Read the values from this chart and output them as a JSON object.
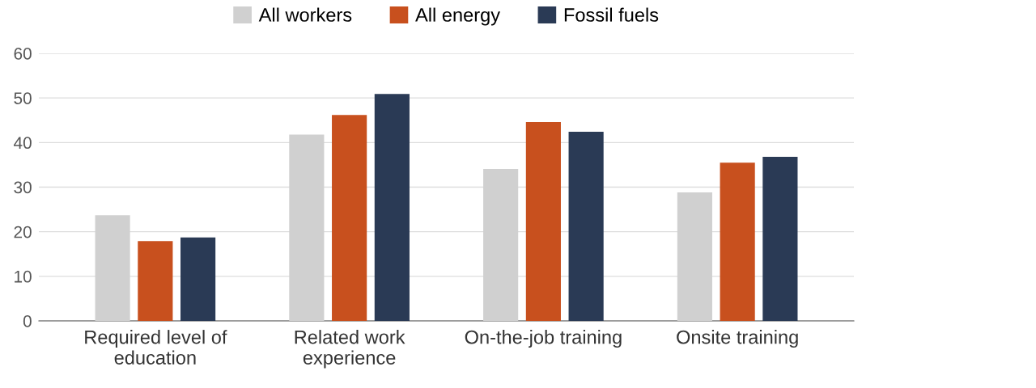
{
  "chart_data": {
    "type": "bar",
    "categories": [
      "Required level of\neducation",
      "Related work\nexperience",
      "On-the-job training",
      "Onsite training"
    ],
    "series": [
      {
        "name": "All workers",
        "color": "#d0d0d0",
        "values": [
          23.7,
          41.8,
          34.1,
          28.8
        ]
      },
      {
        "name": "All energy",
        "color": "#c8501e",
        "values": [
          17.9,
          46.2,
          44.6,
          35.5
        ]
      },
      {
        "name": "Fossil fuels",
        "color": "#2a3a55",
        "values": [
          18.7,
          50.9,
          42.4,
          36.8
        ]
      }
    ],
    "ylim": [
      0,
      60
    ],
    "yticks": [
      0,
      10,
      20,
      30,
      40,
      50,
      60
    ],
    "grid": "y",
    "legend": "top"
  }
}
